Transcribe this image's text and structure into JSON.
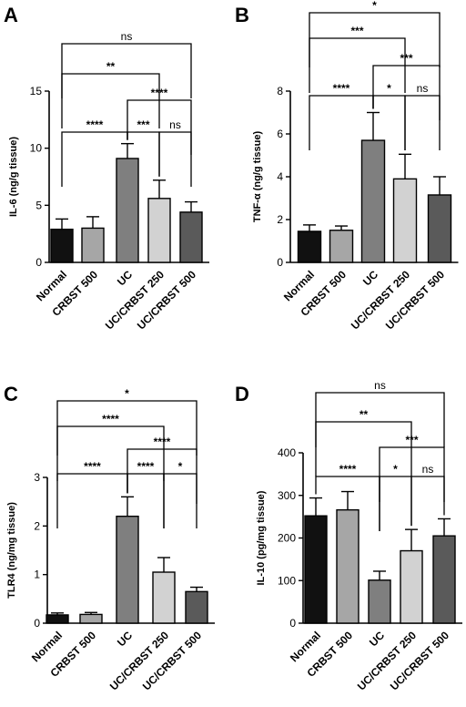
{
  "chart_data": [
    {
      "panel": "A",
      "type": "bar",
      "categories": [
        "Normal",
        "CRBST 500",
        "UC",
        "UC/CRBST 250",
        "UC/CRBST 500"
      ],
      "values": [
        2.9,
        3.0,
        9.1,
        5.6,
        4.4
      ],
      "errors": [
        0.9,
        1.0,
        1.3,
        1.6,
        0.9
      ],
      "ylabel": "IL-6 (ng/g tissue)",
      "ylim": [
        0,
        15
      ],
      "yticks": [
        0,
        5,
        10,
        15
      ],
      "yticks_labels": [
        "0",
        "5",
        "10",
        "15"
      ],
      "bar_colors": [
        "#111111",
        "#a6a6a6",
        "#7f7f7f",
        "#d2d2d2",
        "#5a5a5a"
      ],
      "comparisons": [
        {
          "from": 0,
          "to": 4,
          "label": "ns",
          "level": 0
        },
        {
          "from": 0,
          "to": 3,
          "label": "**",
          "level": 1
        },
        {
          "from": 2,
          "to": 4,
          "label": "****",
          "level": 2
        },
        {
          "from": 0,
          "to": 2,
          "label": "****",
          "level": 3
        },
        {
          "from": 2,
          "to": 3,
          "label": "***",
          "level": 3
        },
        {
          "from": 3,
          "to": 4,
          "label": "ns",
          "level": 3
        }
      ]
    },
    {
      "panel": "B",
      "type": "bar",
      "categories": [
        "Normal",
        "CRBST 500",
        "UC",
        "UC/CRBST 250",
        "UC/CRBST 500"
      ],
      "values": [
        1.45,
        1.5,
        5.7,
        3.9,
        3.15
      ],
      "errors": [
        0.3,
        0.2,
        1.3,
        1.15,
        0.85
      ],
      "ylabel": "TNF-α (ng/g tissue)",
      "ylim": [
        0,
        8
      ],
      "yticks": [
        0,
        2,
        4,
        6,
        8
      ],
      "yticks_labels": [
        "0",
        "2",
        "4",
        "6",
        "8"
      ],
      "bar_colors": [
        "#111111",
        "#a6a6a6",
        "#7f7f7f",
        "#d2d2d2",
        "#5a5a5a"
      ],
      "comparisons": [
        {
          "from": 0,
          "to": 4,
          "label": "*",
          "level": 0
        },
        {
          "from": 0,
          "to": 3,
          "label": "***",
          "level": 1
        },
        {
          "from": 2,
          "to": 4,
          "label": "***",
          "level": 2
        },
        {
          "from": 0,
          "to": 2,
          "label": "****",
          "level": 3
        },
        {
          "from": 2,
          "to": 3,
          "label": "*",
          "level": 3
        },
        {
          "from": 3,
          "to": 4,
          "label": "ns",
          "level": 3
        }
      ]
    },
    {
      "panel": "C",
      "type": "bar",
      "categories": [
        "Normal",
        "CRBST 500",
        "UC",
        "UC/CRBST 250",
        "UC/CRBST 500"
      ],
      "values": [
        0.17,
        0.18,
        2.2,
        1.05,
        0.65
      ],
      "errors": [
        0.04,
        0.04,
        0.4,
        0.3,
        0.09
      ],
      "ylabel": "TLR4 (ng/mg tissue)",
      "ylim": [
        0,
        3
      ],
      "yticks": [
        0,
        1,
        2,
        3
      ],
      "yticks_labels": [
        "0",
        "1",
        "2",
        "3"
      ],
      "bar_colors": [
        "#111111",
        "#a6a6a6",
        "#7f7f7f",
        "#d2d2d2",
        "#5a5a5a"
      ],
      "comparisons": [
        {
          "from": 0,
          "to": 4,
          "label": "*",
          "level": 0
        },
        {
          "from": 0,
          "to": 3,
          "label": "****",
          "level": 1
        },
        {
          "from": 2,
          "to": 4,
          "label": "****",
          "level": 2
        },
        {
          "from": 0,
          "to": 2,
          "label": "****",
          "level": 3
        },
        {
          "from": 2,
          "to": 3,
          "label": "****",
          "level": 3
        },
        {
          "from": 3,
          "to": 4,
          "label": "*",
          "level": 3
        }
      ]
    },
    {
      "panel": "D",
      "type": "bar",
      "categories": [
        "Normal",
        "CRBST 500",
        "UC",
        "UC/CRBST 250",
        "UC/CRBST 500"
      ],
      "values": [
        252,
        266,
        101,
        170,
        205
      ],
      "errors": [
        42,
        43,
        21,
        50,
        40
      ],
      "ylabel": "IL-10 (pg/mg tissue)",
      "ylim": [
        0,
        400
      ],
      "yticks": [
        0,
        100,
        200,
        300,
        400
      ],
      "yticks_labels": [
        "0",
        "100",
        "200",
        "300",
        "400"
      ],
      "bar_colors": [
        "#111111",
        "#a6a6a6",
        "#7f7f7f",
        "#d2d2d2",
        "#5a5a5a"
      ],
      "comparisons": [
        {
          "from": 0,
          "to": 4,
          "label": "ns",
          "level": 0
        },
        {
          "from": 0,
          "to": 3,
          "label": "**",
          "level": 1
        },
        {
          "from": 2,
          "to": 4,
          "label": "***",
          "level": 2
        },
        {
          "from": 0,
          "to": 2,
          "label": "****",
          "level": 3
        },
        {
          "from": 2,
          "to": 3,
          "label": "*",
          "level": 3
        },
        {
          "from": 3,
          "to": 4,
          "label": "ns",
          "level": 3
        }
      ]
    }
  ]
}
